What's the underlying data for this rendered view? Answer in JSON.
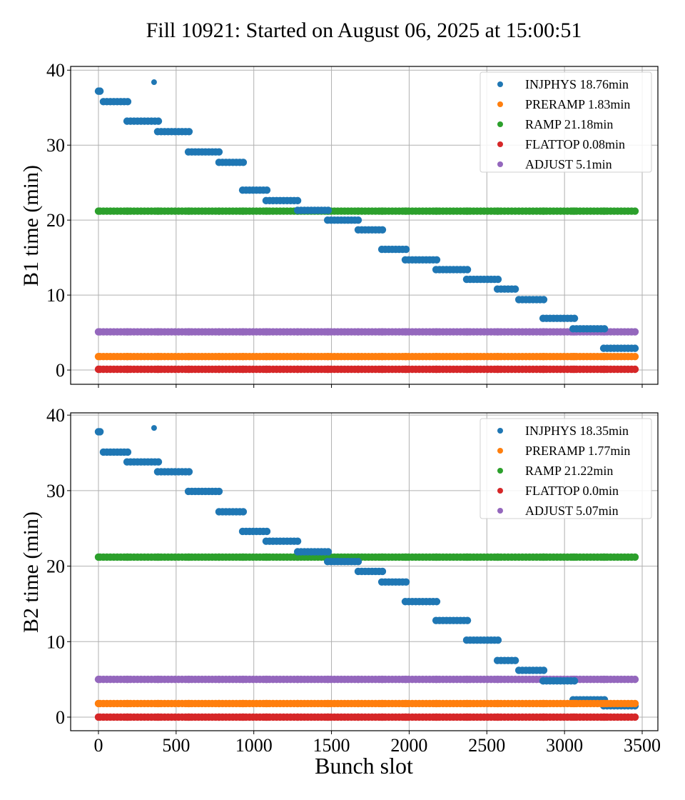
{
  "figure": {
    "title": "Fill 10921: Started on August 06, 2025 at 15:00:51",
    "xlabel": "Bunch slot"
  },
  "colors": {
    "INJPHYS": "#1f77b4",
    "PRERAMP": "#ff7f0e",
    "RAMP": "#2ca02c",
    "FLATTOP": "#d62728",
    "ADJUST": "#9467bd",
    "grid": "#b0b0b0",
    "axis": "#000000"
  },
  "chart_data": [
    {
      "type": "scatter",
      "title": "Fill 10921: Started on August 06, 2025 at 15:00:51",
      "xlabel": "",
      "ylabel": "B1 time (min)",
      "xlim": [
        -179,
        3601
      ],
      "ylim": [
        -1.9,
        40.5
      ],
      "xticks": [
        0,
        500,
        1000,
        1500,
        2000,
        2500,
        3000,
        3500
      ],
      "yticks": [
        0,
        10,
        20,
        30,
        40
      ],
      "grid": true,
      "legend_position": "upper-right",
      "legend": [
        {
          "phase": "INJPHYS",
          "label": "INJPHYS 18.76min"
        },
        {
          "phase": "PRERAMP",
          "label": "PRERAMP 1.83min"
        },
        {
          "phase": "RAMP",
          "label": "RAMP 21.18min"
        },
        {
          "phase": "FLATTOP",
          "label": "FLATTOP 0.08min"
        },
        {
          "phase": "ADJUST",
          "label": "ADJUST 5.1min"
        }
      ],
      "trains": [
        [
          0,
          10
        ],
        [
          32,
          188
        ],
        [
          184,
          386
        ],
        [
          381,
          583
        ],
        [
          579,
          776
        ],
        [
          776,
          932
        ],
        [
          928,
          1084
        ],
        [
          1079,
          1282
        ],
        [
          1282,
          1479
        ],
        [
          1475,
          1672
        ],
        [
          1672,
          1828
        ],
        [
          1824,
          1980
        ],
        [
          1975,
          2177
        ],
        [
          2173,
          2375
        ],
        [
          2370,
          2572
        ],
        [
          2568,
          2683
        ],
        [
          2706,
          2866
        ],
        [
          2862,
          3064
        ],
        [
          3055,
          3257
        ],
        [
          3252,
          3454
        ]
      ],
      "series": [
        {
          "name": "RAMP",
          "per_train": [
            21.2,
            21.2,
            21.2,
            21.2,
            21.2,
            21.2,
            21.2,
            21.2,
            21.2,
            21.2,
            21.2,
            21.2,
            21.2,
            21.2,
            21.2,
            21.2,
            21.2,
            21.2,
            21.2,
            21.2
          ]
        },
        {
          "name": "ADJUST",
          "per_train": [
            5.1,
            5.1,
            5.1,
            5.1,
            5.1,
            5.1,
            5.1,
            5.1,
            5.1,
            5.1,
            5.1,
            5.1,
            5.1,
            5.1,
            5.1,
            5.1,
            5.1,
            5.1,
            5.1,
            5.1
          ]
        },
        {
          "name": "PRERAMP",
          "per_train": [
            1.8,
            1.8,
            1.8,
            1.8,
            1.8,
            1.8,
            1.8,
            1.8,
            1.8,
            1.8,
            1.8,
            1.8,
            1.8,
            1.8,
            1.8,
            1.8,
            1.8,
            1.8,
            1.8,
            1.8
          ]
        },
        {
          "name": "FLATTOP",
          "per_train": [
            0.1,
            0.1,
            0.1,
            0.1,
            0.1,
            0.1,
            0.1,
            0.1,
            0.1,
            0.1,
            0.1,
            0.1,
            0.1,
            0.1,
            0.1,
            0.1,
            0.1,
            0.1,
            0.1,
            0.1
          ]
        },
        {
          "name": "INJPHYS",
          "per_train": [
            37.2,
            35.8,
            33.2,
            31.8,
            29.1,
            27.7,
            24.0,
            22.6,
            21.3,
            20.0,
            18.7,
            16.1,
            14.7,
            13.4,
            12.1,
            10.8,
            9.4,
            6.9,
            5.5,
            2.9
          ],
          "extra_points": [
            {
              "x": 358,
              "y": 38.4
            }
          ]
        }
      ]
    },
    {
      "type": "scatter",
      "title": "",
      "xlabel": "Bunch slot",
      "ylabel": "B2 time (min)",
      "xlim": [
        -179,
        3601
      ],
      "ylim": [
        -1.8,
        40.3
      ],
      "xticks": [
        0,
        500,
        1000,
        1500,
        2000,
        2500,
        3000,
        3500
      ],
      "yticks": [
        0,
        10,
        20,
        30,
        40
      ],
      "grid": true,
      "legend_position": "upper-right",
      "legend": [
        {
          "phase": "INJPHYS",
          "label": "INJPHYS 18.35min"
        },
        {
          "phase": "PRERAMP",
          "label": "PRERAMP 1.77min"
        },
        {
          "phase": "RAMP",
          "label": "RAMP 21.22min"
        },
        {
          "phase": "FLATTOP",
          "label": "FLATTOP 0.0min"
        },
        {
          "phase": "ADJUST",
          "label": "ADJUST 5.07min"
        }
      ],
      "trains": [
        [
          0,
          10
        ],
        [
          32,
          188
        ],
        [
          184,
          386
        ],
        [
          381,
          583
        ],
        [
          579,
          776
        ],
        [
          776,
          932
        ],
        [
          928,
          1084
        ],
        [
          1079,
          1282
        ],
        [
          1282,
          1479
        ],
        [
          1475,
          1672
        ],
        [
          1672,
          1828
        ],
        [
          1824,
          1980
        ],
        [
          1975,
          2177
        ],
        [
          2173,
          2375
        ],
        [
          2370,
          2572
        ],
        [
          2568,
          2683
        ],
        [
          2706,
          2866
        ],
        [
          2862,
          3064
        ],
        [
          3055,
          3257
        ],
        [
          3252,
          3454
        ]
      ],
      "series": [
        {
          "name": "RAMP",
          "per_train": [
            21.2,
            21.2,
            21.2,
            21.2,
            21.2,
            21.2,
            21.2,
            21.2,
            21.2,
            21.2,
            21.2,
            21.2,
            21.2,
            21.2,
            21.2,
            21.2,
            21.2,
            21.2,
            21.2,
            21.2
          ]
        },
        {
          "name": "ADJUST",
          "per_train": [
            5.0,
            5.0,
            5.0,
            5.0,
            5.0,
            5.0,
            5.0,
            5.0,
            5.0,
            5.0,
            5.0,
            5.0,
            5.0,
            5.0,
            5.0,
            5.0,
            5.0,
            5.0,
            5.0,
            5.0
          ]
        },
        {
          "name": "FLATTOP",
          "per_train": [
            0.0,
            0.0,
            0.0,
            0.0,
            0.0,
            0.0,
            0.0,
            0.0,
            0.0,
            0.0,
            0.0,
            0.0,
            0.0,
            0.0,
            0.0,
            0.0,
            0.0,
            0.0,
            0.0,
            0.0
          ]
        },
        {
          "name": "INJPHYS",
          "per_train": [
            37.8,
            35.1,
            33.8,
            32.5,
            29.9,
            27.2,
            24.6,
            23.3,
            21.9,
            20.6,
            19.3,
            17.9,
            15.3,
            12.8,
            10.2,
            7.5,
            6.2,
            4.8,
            2.3,
            1.5
          ],
          "extra_points": [
            {
              "x": 358,
              "y": 38.3
            }
          ]
        },
        {
          "name": "PRERAMP",
          "per_train": [
            1.8,
            1.8,
            1.8,
            1.8,
            1.8,
            1.8,
            1.8,
            1.8,
            1.8,
            1.8,
            1.8,
            1.8,
            1.8,
            1.8,
            1.8,
            1.8,
            1.8,
            1.8,
            1.8,
            1.8
          ]
        }
      ]
    }
  ]
}
